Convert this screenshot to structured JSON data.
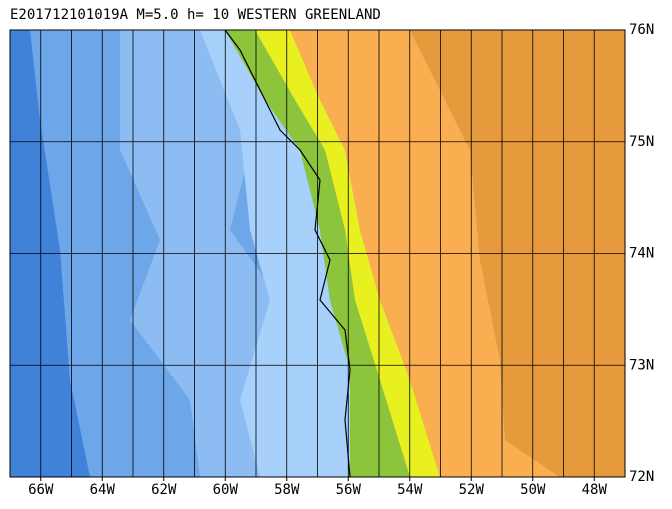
{
  "map": {
    "title": "E201712101019A M=5.0 h= 10 WESTERN GREENLAND",
    "xlim": [
      -67,
      -47
    ],
    "ylim": [
      72,
      76
    ],
    "xticks": [
      {
        "value": -66,
        "label": "66W"
      },
      {
        "value": -64,
        "label": "64W"
      },
      {
        "value": -62,
        "label": "62W"
      },
      {
        "value": -60,
        "label": "60W"
      },
      {
        "value": -58,
        "label": "58W"
      },
      {
        "value": -56,
        "label": "56W"
      },
      {
        "value": -54,
        "label": "54W"
      },
      {
        "value": -52,
        "label": "52W"
      },
      {
        "value": -50,
        "label": "50W"
      },
      {
        "value": -48,
        "label": "48W"
      }
    ],
    "yticks": [
      {
        "value": 76,
        "label": "76N"
      },
      {
        "value": 75,
        "label": "75N"
      },
      {
        "value": 74,
        "label": "74N"
      },
      {
        "value": 73,
        "label": "73N"
      },
      {
        "value": 72,
        "label": "72N"
      }
    ]
  }
}
